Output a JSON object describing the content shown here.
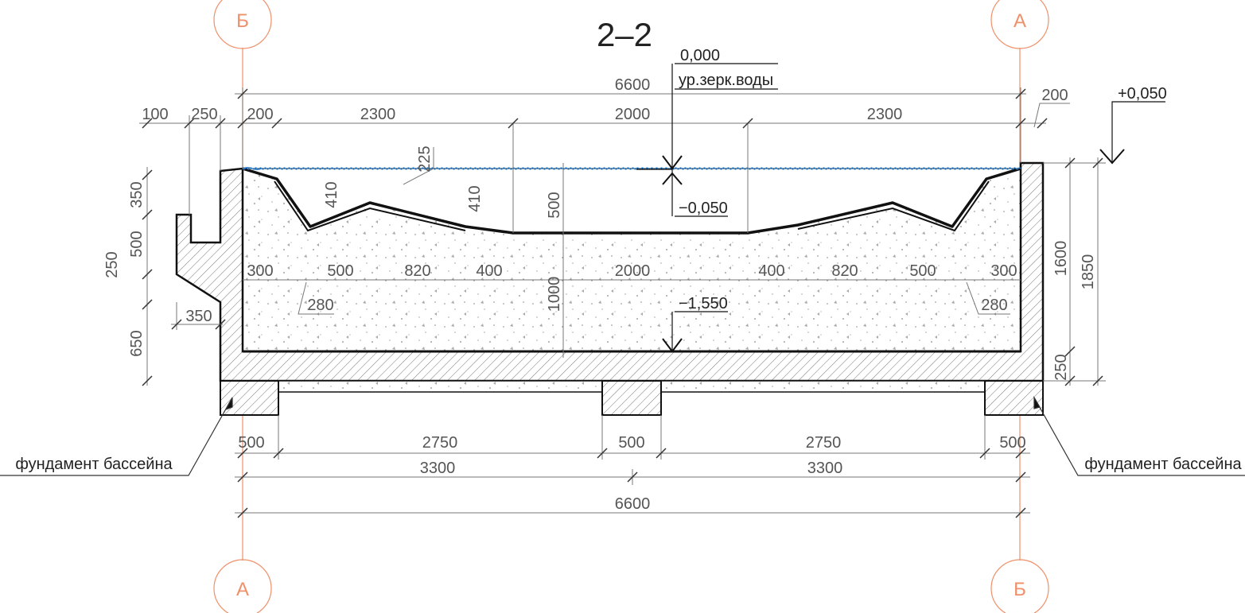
{
  "title": "2–2",
  "axis_markers": [
    "Б",
    "А",
    "А",
    "Б"
  ],
  "levels": {
    "water_level": "0,000",
    "water_label": "ур.зерк.воды",
    "top": "+0,050",
    "edge": "−0,050",
    "bottom": "−1,550"
  },
  "dimensions": {
    "overall_top": "6600",
    "top_row": [
      "100",
      "250",
      "200",
      "2300",
      "2000",
      "2300",
      "200"
    ],
    "left": [
      "350",
      "500",
      "250",
      "650",
      "350"
    ],
    "slope": "225",
    "depths": [
      "410",
      "410",
      "500",
      "1000"
    ],
    "middle_row": [
      "300",
      "500",
      "820",
      "400",
      "2000",
      "400",
      "820",
      "500",
      "300"
    ],
    "slope_widths": [
      "280",
      "280"
    ],
    "right": [
      "1600",
      "1850",
      "250"
    ],
    "foundation_row": [
      "500",
      "2750",
      "500",
      "2750",
      "500"
    ],
    "half_spans": [
      "3300",
      "3300"
    ],
    "overall_bottom": "6600"
  },
  "notes": [
    "фундамент бассейна",
    "фундамент бассейна"
  ]
}
